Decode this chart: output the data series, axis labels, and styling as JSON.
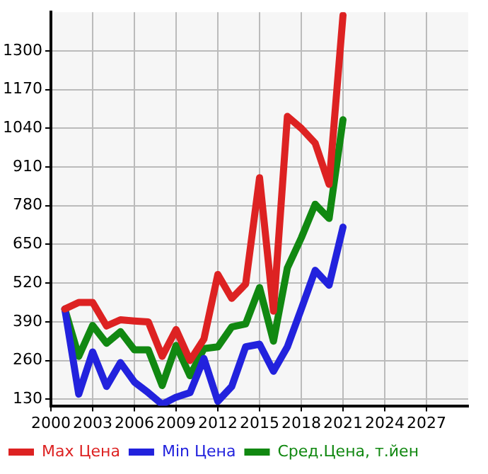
{
  "chart_data": {
    "type": "line",
    "x": [
      2001,
      2002,
      2003,
      2004,
      2005,
      2006,
      2007,
      2008,
      2009,
      2010,
      2011,
      2012,
      2013,
      2014,
      2015,
      2016,
      2017,
      2018,
      2019,
      2020,
      2021
    ],
    "series": [
      {
        "name": "Max Цена",
        "color": "#dd2222",
        "values": [
          433,
          455,
          455,
          376,
          397,
          393,
          390,
          274,
          364,
          260,
          332,
          549,
          469,
          517,
          874,
          426,
          1080,
          1040,
          990,
          852,
          1420
        ]
      },
      {
        "name": "Min Цена",
        "color": "#2222dd",
        "values": [
          433,
          147,
          289,
          173,
          253,
          188,
          152,
          113,
          137,
          152,
          267,
          123,
          173,
          306,
          315,
          224,
          306,
          433,
          563,
          513,
          708
        ]
      },
      {
        "name": "Сред.Цена, т.йен",
        "color": "#118811",
        "values": [
          433,
          274,
          378,
          318,
          357,
          296,
          296,
          176,
          311,
          209,
          300,
          306,
          373,
          383,
          505,
          325,
          571,
          672,
          785,
          737,
          1069
        ]
      }
    ],
    "xlim": [
      2000,
      2030
    ],
    "xticks": [
      2000,
      2003,
      2006,
      2009,
      2012,
      2015,
      2018,
      2021,
      2024,
      2027
    ],
    "ylim": [
      108,
      1430
    ],
    "yticks": [
      130,
      260,
      390,
      520,
      650,
      780,
      910,
      1040,
      1170,
      1300
    ],
    "grid": true,
    "legend": "bottom",
    "marker": "none",
    "line_style": "solid"
  }
}
